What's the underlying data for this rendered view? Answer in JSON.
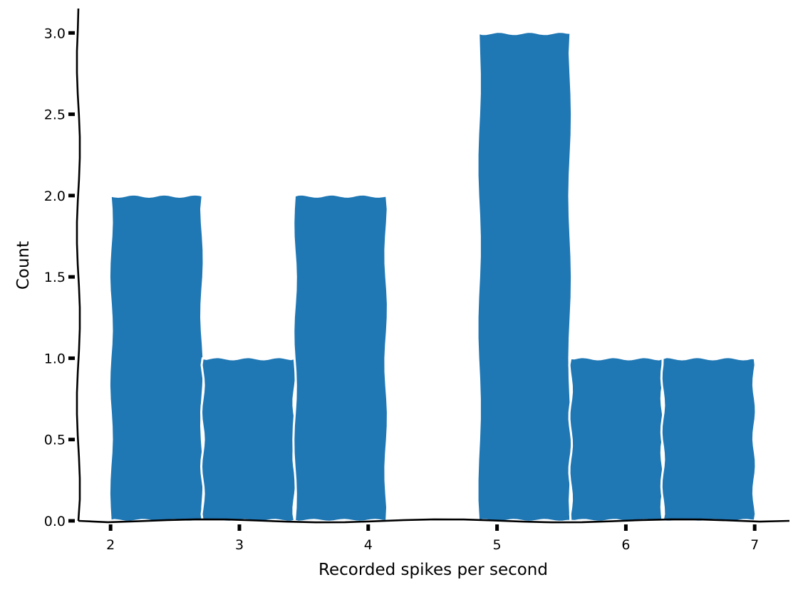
{
  "chart_data": {
    "type": "bar",
    "style": "xkcd histogram",
    "title": "",
    "xlabel": "Recorded spikes per second",
    "ylabel": "Count",
    "bins": [
      {
        "start": 2.0,
        "end": 2.714,
        "count": 2
      },
      {
        "start": 2.714,
        "end": 3.429,
        "count": 1
      },
      {
        "start": 3.429,
        "end": 4.143,
        "count": 2
      },
      {
        "start": 4.143,
        "end": 4.857,
        "count": 0
      },
      {
        "start": 4.857,
        "end": 5.571,
        "count": 3
      },
      {
        "start": 5.571,
        "end": 6.286,
        "count": 1
      },
      {
        "start": 6.286,
        "end": 7.0,
        "count": 1
      }
    ],
    "xticks": [
      2,
      3,
      4,
      5,
      6,
      7
    ],
    "yticks": [
      "0.0",
      "0.5",
      "1.0",
      "1.5",
      "2.0",
      "2.5",
      "3.0"
    ],
    "xlim": [
      1.75,
      7.27
    ],
    "ylim": [
      0,
      3.15
    ],
    "grid": false,
    "legend": null,
    "colors": {
      "bar": "#1f77b4",
      "bar_edge": "#ffffff",
      "axis": "#000000"
    }
  }
}
